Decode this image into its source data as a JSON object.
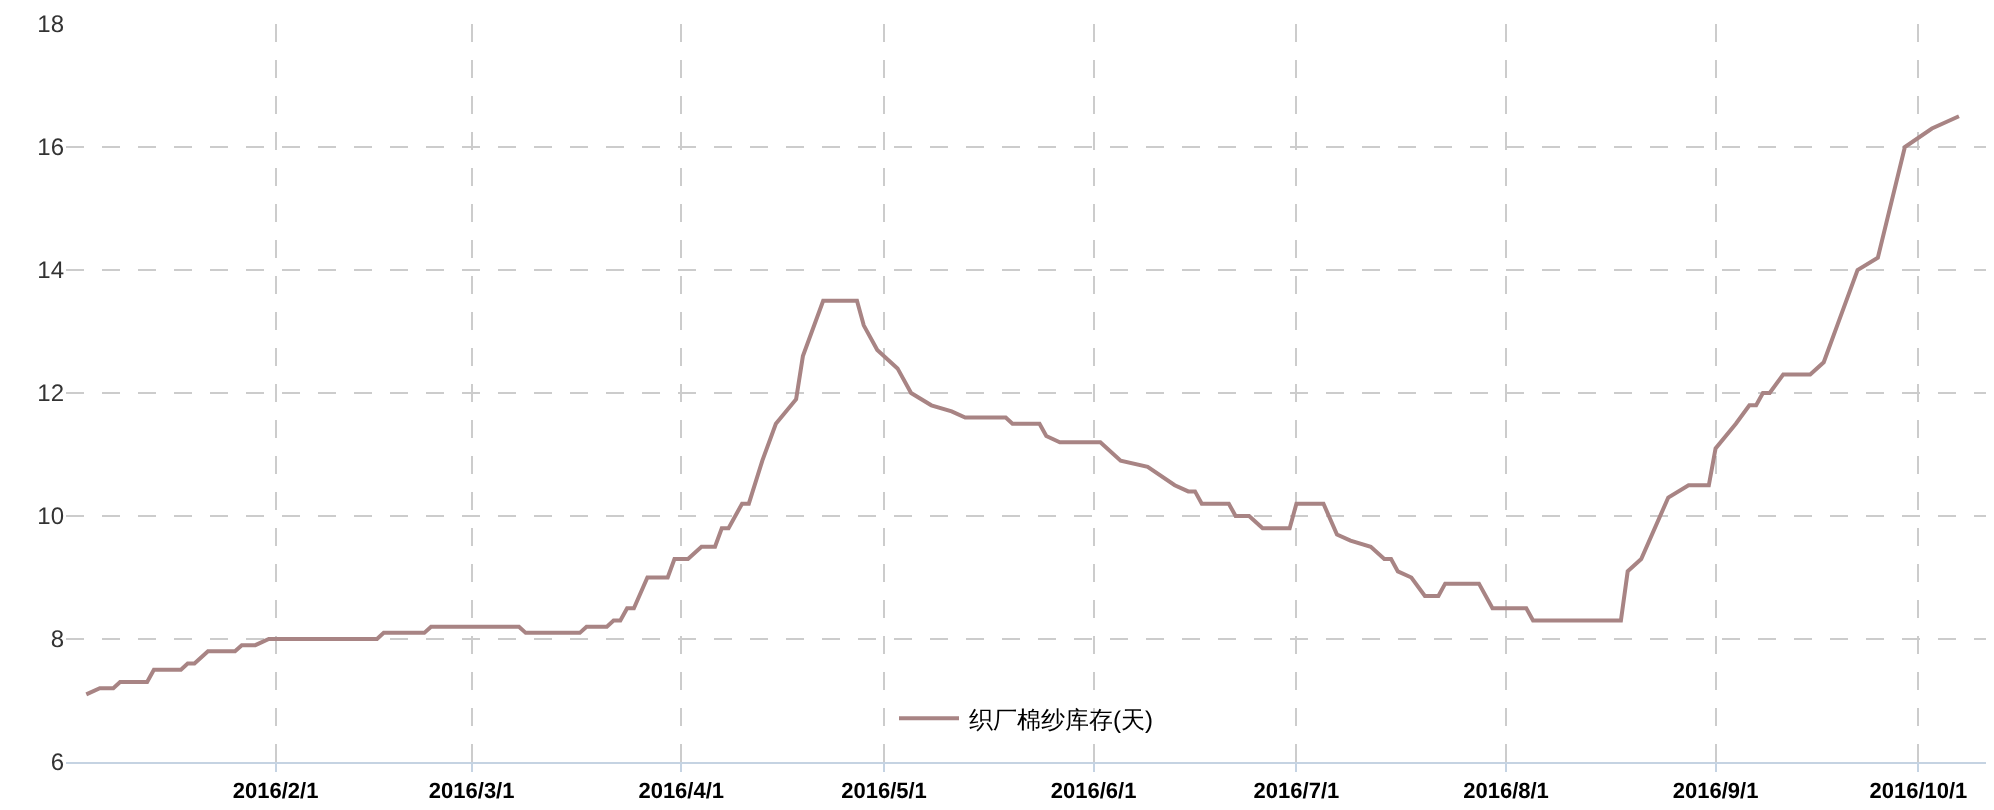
{
  "chart_data": {
    "type": "line",
    "x": [
      "2016-01-04",
      "2016-01-06",
      "2016-01-08",
      "2016-01-09",
      "2016-01-13",
      "2016-01-14",
      "2016-01-18",
      "2016-01-19",
      "2016-01-20",
      "2016-01-22",
      "2016-01-26",
      "2016-01-27",
      "2016-01-29",
      "2016-01-31",
      "2016-02-16",
      "2016-02-17",
      "2016-02-23",
      "2016-02-24",
      "2016-03-08",
      "2016-03-09",
      "2016-03-17",
      "2016-03-18",
      "2016-03-21",
      "2016-03-22",
      "2016-03-23",
      "2016-03-24",
      "2016-03-25",
      "2016-03-27",
      "2016-03-30",
      "2016-03-31",
      "2016-04-02",
      "2016-04-04",
      "2016-04-06",
      "2016-04-07",
      "2016-04-08",
      "2016-04-10",
      "2016-04-11",
      "2016-04-13",
      "2016-04-15",
      "2016-04-18",
      "2016-04-19",
      "2016-04-22",
      "2016-04-27",
      "2016-04-28",
      "2016-04-30",
      "2016-05-03",
      "2016-05-05",
      "2016-05-08",
      "2016-05-11",
      "2016-05-13",
      "2016-05-19",
      "2016-05-20",
      "2016-05-24",
      "2016-05-25",
      "2016-05-27",
      "2016-06-02",
      "2016-06-05",
      "2016-06-09",
      "2016-06-13",
      "2016-06-15",
      "2016-06-16",
      "2016-06-17",
      "2016-06-21",
      "2016-06-22",
      "2016-06-24",
      "2016-06-26",
      "2016-06-30",
      "2016-07-01",
      "2016-07-05",
      "2016-07-07",
      "2016-07-09",
      "2016-07-12",
      "2016-07-14",
      "2016-07-15",
      "2016-07-16",
      "2016-07-18",
      "2016-07-20",
      "2016-07-22",
      "2016-07-23",
      "2016-07-28",
      "2016-07-30",
      "2016-08-04",
      "2016-08-05",
      "2016-08-18",
      "2016-08-19",
      "2016-08-21",
      "2016-08-25",
      "2016-08-28",
      "2016-08-31",
      "2016-09-01",
      "2016-09-04",
      "2016-09-06",
      "2016-09-07",
      "2016-09-08",
      "2016-09-09",
      "2016-09-11",
      "2016-09-15",
      "2016-09-17",
      "2016-09-19",
      "2016-09-22",
      "2016-09-25",
      "2016-09-29",
      "2016-10-03",
      "2016-10-07"
    ],
    "series": [
      {
        "name": "织厂棉纱库存(天)",
        "color": "#a88484",
        "values": [
          7.1,
          7.2,
          7.2,
          7.3,
          7.3,
          7.5,
          7.5,
          7.6,
          7.6,
          7.8,
          7.8,
          7.9,
          7.9,
          8.0,
          8.0,
          8.1,
          8.1,
          8.2,
          8.2,
          8.1,
          8.1,
          8.2,
          8.2,
          8.3,
          8.3,
          8.5,
          8.5,
          9.0,
          9.0,
          9.3,
          9.3,
          9.5,
          9.5,
          9.8,
          9.8,
          10.2,
          10.2,
          10.9,
          11.5,
          11.9,
          12.6,
          13.5,
          13.5,
          13.1,
          12.7,
          12.4,
          12.0,
          11.8,
          11.7,
          11.6,
          11.6,
          11.5,
          11.5,
          11.3,
          11.2,
          11.2,
          10.9,
          10.8,
          10.5,
          10.4,
          10.4,
          10.2,
          10.2,
          10.0,
          10.0,
          9.8,
          9.8,
          10.2,
          10.2,
          9.7,
          9.6,
          9.5,
          9.3,
          9.3,
          9.1,
          9.0,
          8.7,
          8.7,
          8.9,
          8.9,
          8.5,
          8.5,
          8.3,
          8.3,
          9.1,
          9.3,
          10.3,
          10.5,
          10.5,
          11.1,
          11.5,
          11.8,
          11.8,
          12.0,
          12.0,
          12.3,
          12.3,
          12.5,
          13.1,
          14.0,
          14.2,
          16.0,
          16.3,
          16.5
        ]
      }
    ],
    "xlim": [
      "2016-01-01",
      "2016-10-11"
    ],
    "xticks": [
      {
        "value": "2016-02-01",
        "label": "2016/2/1"
      },
      {
        "value": "2016-03-01",
        "label": "2016/3/1"
      },
      {
        "value": "2016-04-01",
        "label": "2016/4/1"
      },
      {
        "value": "2016-05-01",
        "label": "2016/5/1"
      },
      {
        "value": "2016-06-01",
        "label": "2016/6/1"
      },
      {
        "value": "2016-07-01",
        "label": "2016/7/1"
      },
      {
        "value": "2016-08-01",
        "label": "2016/8/1"
      },
      {
        "value": "2016-09-01",
        "label": "2016/9/1"
      },
      {
        "value": "2016-10-01",
        "label": "2016/10/1"
      }
    ],
    "ylim": [
      6,
      18
    ],
    "yticks": [
      6,
      8,
      10,
      12,
      14,
      16,
      18
    ],
    "grid": true,
    "legend": "bottom",
    "marker": "none",
    "line_style": "solid"
  }
}
